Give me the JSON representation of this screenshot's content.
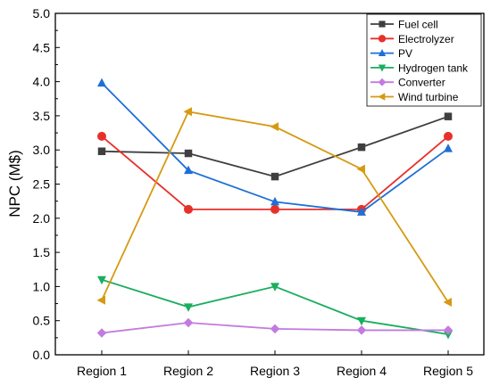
{
  "chart_data": {
    "type": "line",
    "title": "",
    "xlabel": "",
    "ylabel": "NPC (M$)",
    "categories": [
      "Region 1",
      "Region 2",
      "Region 3",
      "Region 4",
      "Region 5"
    ],
    "ylim": [
      0,
      5
    ],
    "yticks": [
      "0.0",
      "0.5",
      "1.0",
      "1.5",
      "2.0",
      "2.5",
      "3.0",
      "3.5",
      "4.0",
      "4.5",
      "5.0"
    ],
    "grid": false,
    "legend_position": "top-right",
    "series": [
      {
        "name": "Fuel cell",
        "color": "#3f3f3f",
        "marker": "square",
        "values": [
          2.98,
          2.95,
          2.61,
          3.04,
          3.49
        ]
      },
      {
        "name": "Electrolyzer",
        "color": "#e8302a",
        "marker": "circle",
        "values": [
          3.2,
          2.13,
          2.13,
          2.13,
          3.2
        ]
      },
      {
        "name": "PV",
        "color": "#1f6fd6",
        "marker": "triangle-up",
        "values": [
          3.98,
          2.7,
          2.24,
          2.09,
          3.02
        ]
      },
      {
        "name": "Hydrogen tank",
        "color": "#1aae5e",
        "marker": "triangle-down",
        "values": [
          1.1,
          0.7,
          1.0,
          0.5,
          0.3
        ]
      },
      {
        "name": "Converter",
        "color": "#c27be0",
        "marker": "diamond",
        "values": [
          0.32,
          0.47,
          0.38,
          0.36,
          0.36
        ]
      },
      {
        "name": "Wind turbine",
        "color": "#d69a12",
        "marker": "triangle-left",
        "values": [
          0.8,
          3.56,
          3.34,
          2.72,
          0.77
        ]
      }
    ]
  }
}
